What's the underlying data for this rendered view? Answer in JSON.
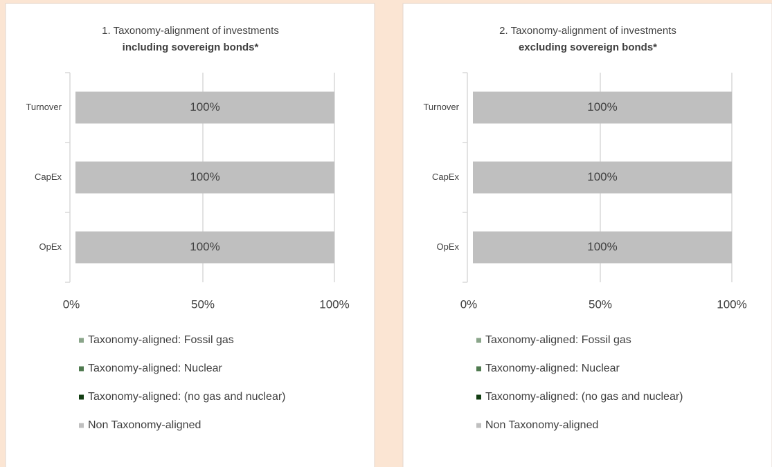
{
  "chart_data": [
    {
      "type": "bar",
      "orientation": "horizontal",
      "stacked": true,
      "title": "1. Taxonomy-alignment of investments",
      "subtitle": "including sovereign bonds*",
      "categories": [
        "Turnover",
        "CapEx",
        "OpEx"
      ],
      "series": [
        {
          "name": "Taxonomy-aligned: Fossil gas",
          "color": "#8aa58a",
          "values": [
            0,
            0,
            0
          ]
        },
        {
          "name": "Taxonomy-aligned: Nuclear",
          "color": "#4f7a4f",
          "values": [
            0,
            0,
            0
          ]
        },
        {
          "name": "Taxonomy-aligned: (no gas and nuclear)",
          "color": "#123d12",
          "values": [
            0,
            0,
            0
          ]
        },
        {
          "name": "Non Taxonomy-aligned",
          "color": "#bfbfbf",
          "values": [
            100,
            100,
            100
          ],
          "value_labels": [
            "100%",
            "100%",
            "100%"
          ]
        }
      ],
      "xlim": [
        0,
        100
      ],
      "xticks": [
        {
          "value": 0,
          "label": "0%"
        },
        {
          "value": 50,
          "label": "50%"
        },
        {
          "value": 100,
          "label": "100%"
        }
      ],
      "grid": true,
      "legend": "bottom"
    },
    {
      "type": "bar",
      "orientation": "horizontal",
      "stacked": true,
      "title": "2. Taxonomy-alignment of investments",
      "subtitle": "excluding sovereign bonds*",
      "categories": [
        "Turnover",
        "CapEx",
        "OpEx"
      ],
      "series": [
        {
          "name": "Taxonomy-aligned: Fossil gas",
          "color": "#8aa58a",
          "values": [
            0,
            0,
            0
          ]
        },
        {
          "name": "Taxonomy-aligned: Nuclear",
          "color": "#4f7a4f",
          "values": [
            0,
            0,
            0
          ]
        },
        {
          "name": "Taxonomy-aligned: (no gas and nuclear)",
          "color": "#123d12",
          "values": [
            0,
            0,
            0
          ]
        },
        {
          "name": "Non Taxonomy-aligned",
          "color": "#bfbfbf",
          "values": [
            100,
            100,
            100
          ],
          "value_labels": [
            "100%",
            "100%",
            "100%"
          ]
        }
      ],
      "xlim": [
        0,
        100
      ],
      "xticks": [
        {
          "value": 0,
          "label": "0%"
        },
        {
          "value": 50,
          "label": "50%"
        },
        {
          "value": 100,
          "label": "100%"
        }
      ],
      "grid": true,
      "legend": "bottom"
    }
  ]
}
